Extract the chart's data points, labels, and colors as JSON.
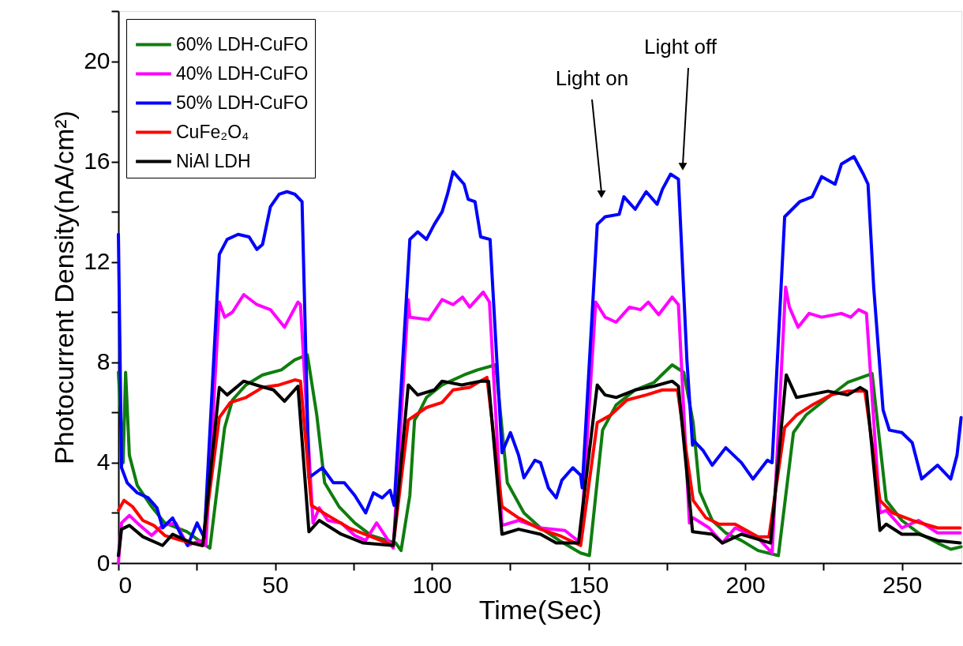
{
  "chart_data": {
    "type": "line",
    "xlabel": "Time(Sec)",
    "ylabel": "Photocurrent Density(nA/cm²)",
    "xlim": [
      0,
      269
    ],
    "ylim": [
      0,
      22
    ],
    "xticks": [
      0,
      {
        "value": 25,
        "label": null
      },
      50,
      {
        "value": 75,
        "label": null
      },
      100,
      {
        "value": 125,
        "label": null
      },
      150,
      {
        "value": 175,
        "label": null
      },
      200,
      {
        "value": 225,
        "label": null
      },
      250
    ],
    "yticks": [
      0,
      {
        "value": 2,
        "label": null
      },
      4,
      {
        "value": 6,
        "label": null
      },
      8,
      {
        "value": 10,
        "label": null
      },
      12,
      {
        "value": 14,
        "label": null
      },
      16,
      {
        "value": 18,
        "label": null
      },
      20,
      {
        "value": 22,
        "label": null
      }
    ],
    "grid": false,
    "legend": "top left",
    "marker": "none",
    "line_style": "solid",
    "annotations": [
      "Light on",
      "Light off"
    ],
    "series": [
      {
        "name": "60% LDH-CuFO",
        "color": "#0f7d0f",
        "x": [
          0,
          1.5,
          2.3,
          3.5,
          6.0,
          10.6,
          14.8,
          21.9,
          27.9,
          29.2,
          33.9,
          36.4,
          40.7,
          46.0,
          52.0,
          56.3,
          60.3,
          63.3,
          65.8,
          70.4,
          75.4,
          80.7,
          88.5,
          90.2,
          93.0,
          94.5,
          95.5,
          98.3,
          103.3,
          110.3,
          114.6,
          120.4,
          124.1,
          129.4,
          134.7,
          140.7,
          147.5,
          150.3,
          154.5,
          158.8,
          164.9,
          170.9,
          176.7,
          180.4,
          183.4,
          185.5,
          189.5,
          193.8,
          198.8,
          204.1,
          210.6,
          215.4,
          219.4,
          226.4,
          232.7,
          240.5,
          245.0,
          250.0,
          255.3,
          261.4,
          265.6,
          268.9
        ],
        "values": [
          7.6,
          4.0,
          7.6,
          4.3,
          3.1,
          2.25,
          1.6,
          1.25,
          0.7,
          0.6,
          5.4,
          6.5,
          7.1,
          7.5,
          7.7,
          8.1,
          8.3,
          5.9,
          3.2,
          2.25,
          1.6,
          1.1,
          0.8,
          0.5,
          2.7,
          5.7,
          5.9,
          6.6,
          7.1,
          7.5,
          7.7,
          7.9,
          3.2,
          2.0,
          1.4,
          0.9,
          0.4,
          0.3,
          5.3,
          6.3,
          6.9,
          7.2,
          7.9,
          7.6,
          5.6,
          2.85,
          1.7,
          1.2,
          0.9,
          0.5,
          0.3,
          5.2,
          5.9,
          6.6,
          7.2,
          7.55,
          2.5,
          1.7,
          1.2,
          0.8,
          0.55,
          0.65
        ]
      },
      {
        "name": "40% LDH-CuFO",
        "color": "#ff00ff",
        "x": [
          0,
          1.0,
          3.5,
          6.0,
          10.6,
          14.1,
          18.3,
          22.1,
          26.1,
          27.9,
          32.2,
          33.9,
          36.4,
          40.0,
          44.2,
          48.5,
          53.0,
          57.3,
          58.1,
          62.1,
          64.1,
          66.8,
          71.1,
          75.4,
          78.9,
          82.4,
          87.7,
          92.5,
          93.0,
          99.0,
          103.3,
          106.8,
          109.8,
          112.1,
          116.4,
          118.4,
          122.4,
          127.7,
          134.7,
          142.5,
          147.5,
          152.3,
          155.3,
          158.8,
          163.1,
          166.6,
          169.1,
          172.4,
          176.7,
          178.7,
          182.2,
          183.4,
          188.5,
          192.7,
          196.8,
          204.1,
          208.6,
          212.9,
          214.1,
          216.9,
          220.4,
          224.4,
          230.7,
          233.7,
          236.2,
          238.7,
          243.0,
          245.0,
          250.0,
          255.3,
          261.4,
          268.6
        ],
        "values": [
          0,
          1.6,
          1.9,
          1.6,
          1.1,
          1.5,
          1.6,
          0.7,
          0.9,
          0.7,
          10.4,
          9.8,
          10.0,
          10.7,
          10.3,
          10.1,
          9.4,
          10.4,
          10.3,
          1.6,
          2.2,
          1.7,
          1.6,
          1.1,
          0.9,
          1.6,
          0.6,
          10.5,
          9.8,
          9.7,
          10.5,
          10.3,
          10.6,
          10.2,
          10.8,
          10.4,
          1.5,
          1.7,
          1.4,
          1.3,
          0.8,
          10.4,
          9.8,
          9.6,
          10.2,
          10.1,
          10.4,
          9.9,
          10.6,
          10.3,
          1.6,
          1.8,
          1.4,
          0.8,
          1.4,
          1.0,
          0.4,
          11.0,
          10.2,
          9.4,
          9.95,
          9.8,
          9.95,
          9.8,
          10.1,
          9.95,
          2.0,
          2.1,
          1.4,
          1.7,
          1.2,
          1.2
        ]
      },
      {
        "name": "50% LDH-CuFO",
        "color": "#0000ff",
        "x": [
          0,
          1.0,
          2.8,
          6.0,
          9.5,
          12.3,
          14.1,
          17.3,
          20.1,
          22.1,
          25.1,
          27.4,
          32.2,
          34.7,
          38.2,
          41.7,
          44.2,
          46.0,
          48.5,
          51.3,
          53.8,
          56.3,
          58.6,
          60.8,
          65.1,
          68.6,
          72.1,
          75.4,
          78.9,
          81.4,
          84.2,
          86.7,
          88.0,
          93.0,
          95.5,
          98.3,
          100.8,
          103.3,
          105.0,
          106.8,
          110.3,
          111.6,
          113.8,
          115.6,
          118.6,
          122.4,
          125.1,
          127.7,
          129.4,
          132.9,
          134.7,
          137.2,
          139.7,
          141.5,
          145.0,
          147.5,
          148.0,
          152.8,
          155.3,
          159.8,
          161.3,
          164.9,
          168.4,
          171.9,
          173.6,
          176.2,
          178.7,
          181.4,
          183.2,
          183.4,
          186.5,
          189.5,
          193.8,
          198.8,
          202.5,
          207.1,
          208.6,
          212.6,
          217.4,
          221.4,
          224.4,
          228.7,
          230.7,
          234.7,
          237.7,
          239.2,
          241.0,
          244.0,
          246.0,
          250.0,
          253.3,
          256.3,
          261.4,
          265.6,
          267.6,
          268.9
        ],
        "values": [
          13.1,
          3.8,
          3.2,
          2.8,
          2.6,
          2.2,
          1.4,
          1.8,
          1.1,
          0.7,
          1.6,
          1.0,
          12.3,
          12.9,
          13.1,
          13.0,
          12.5,
          12.7,
          14.2,
          14.7,
          14.8,
          14.7,
          14.4,
          3.4,
          3.8,
          3.2,
          3.2,
          2.7,
          2.0,
          2.8,
          2.6,
          2.9,
          2.3,
          12.9,
          13.2,
          12.9,
          13.5,
          14.0,
          14.7,
          15.6,
          15.1,
          14.5,
          14.4,
          13.0,
          12.9,
          4.4,
          5.2,
          4.3,
          3.4,
          4.1,
          4.0,
          3.0,
          2.6,
          3.3,
          3.8,
          3.5,
          3.0,
          13.5,
          13.8,
          13.9,
          14.6,
          14.1,
          14.8,
          14.3,
          14.9,
          15.5,
          15.3,
          8.1,
          4.7,
          4.9,
          4.5,
          3.9,
          4.6,
          4.0,
          3.35,
          4.1,
          4.0,
          13.8,
          14.4,
          14.6,
          15.4,
          15.1,
          15.9,
          16.2,
          15.5,
          15.1,
          11.0,
          6.1,
          5.3,
          5.2,
          4.8,
          3.35,
          3.9,
          3.35,
          4.3,
          5.8
        ]
      },
      {
        "name": "CuFe₂O₄",
        "color": "#ff0000",
        "x": [
          0,
          1.8,
          4.5,
          7.8,
          11.3,
          14.8,
          20.1,
          26.9,
          32.2,
          35.7,
          40.7,
          46.0,
          51.3,
          56.3,
          58.1,
          61.6,
          66.8,
          73.6,
          80.7,
          87.7,
          92.5,
          98.3,
          103.3,
          106.8,
          112.1,
          117.6,
          122.4,
          127.7,
          134.7,
          140.7,
          147.5,
          152.8,
          157.1,
          162.3,
          168.4,
          173.6,
          178.4,
          183.4,
          187.5,
          191.7,
          196.8,
          204.1,
          207.6,
          212.6,
          216.4,
          221.4,
          227.4,
          232.7,
          238.2,
          243.0,
          247.0,
          253.3,
          261.4,
          268.6
        ],
        "values": [
          2.1,
          2.5,
          2.25,
          1.7,
          1.5,
          1.1,
          0.9,
          0.7,
          5.8,
          6.4,
          6.6,
          7.0,
          7.1,
          7.3,
          7.25,
          2.3,
          1.9,
          1.4,
          1.05,
          0.7,
          5.7,
          6.2,
          6.4,
          6.9,
          7.0,
          7.4,
          2.25,
          1.8,
          1.35,
          1.1,
          0.7,
          5.6,
          5.9,
          6.5,
          6.7,
          6.9,
          6.9,
          2.5,
          1.8,
          1.55,
          1.55,
          1.05,
          1.05,
          5.4,
          5.9,
          6.3,
          6.7,
          6.85,
          6.85,
          2.5,
          2.0,
          1.7,
          1.4,
          1.4
        ]
      },
      {
        "name": "NiAl LDH",
        "color": "#000000",
        "x": [
          0,
          1.0,
          3.5,
          7.8,
          14.1,
          17.3,
          23.4,
          26.9,
          32.2,
          34.7,
          40.0,
          45.2,
          49.5,
          53.0,
          57.3,
          60.8,
          64.1,
          71.1,
          78.2,
          87.7,
          92.5,
          95.5,
          100.8,
          103.3,
          109.6,
          115.6,
          118.1,
          122.4,
          127.7,
          134.7,
          139.7,
          146.8,
          152.8,
          155.3,
          158.8,
          164.9,
          170.9,
          176.7,
          178.7,
          183.2,
          189.5,
          192.7,
          198.8,
          208.1,
          213.1,
          216.4,
          220.4,
          226.4,
          232.7,
          236.7,
          238.7,
          243.0,
          245.0,
          250.0,
          255.3,
          261.4,
          268.6
        ],
        "values": [
          0.3,
          1.35,
          1.5,
          1.05,
          0.7,
          1.15,
          0.8,
          0.7,
          7.0,
          6.7,
          7.25,
          7.05,
          6.9,
          6.45,
          7.05,
          1.25,
          1.7,
          1.15,
          0.8,
          0.7,
          7.1,
          6.7,
          6.9,
          7.25,
          7.1,
          7.25,
          7.25,
          1.15,
          1.35,
          1.15,
          0.8,
          0.8,
          7.1,
          6.7,
          6.6,
          6.9,
          7.05,
          7.25,
          7.05,
          1.25,
          1.15,
          0.8,
          1.15,
          0.8,
          7.5,
          6.6,
          6.7,
          6.85,
          6.7,
          7.0,
          6.85,
          1.3,
          1.55,
          1.15,
          1.15,
          0.9,
          0.8
        ]
      }
    ]
  }
}
